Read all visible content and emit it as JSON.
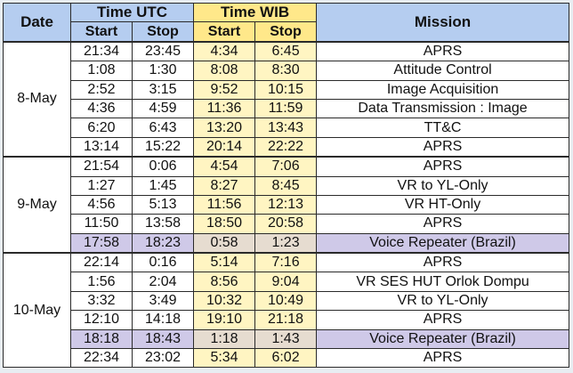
{
  "headers": {
    "date": "Date",
    "time_utc": "Time UTC",
    "time_wib": "Time WIB",
    "mission": "Mission",
    "start": "Start",
    "stop": "Stop"
  },
  "colors": {
    "header_blue": "#b5cdf0",
    "header_yellow": "#ffe88a",
    "wib_column": "#fff5c2",
    "highlight_row": "#cfc9e8"
  },
  "days": [
    {
      "date": "8-May",
      "rows": [
        {
          "utc_start": "21:34",
          "utc_stop": "23:45",
          "wib_start": "4:34",
          "wib_stop": "6:45",
          "mission": "APRS",
          "highlight": false
        },
        {
          "utc_start": "1:08",
          "utc_stop": "1:30",
          "wib_start": "8:08",
          "wib_stop": "8:30",
          "mission": "Attitude Control",
          "highlight": false
        },
        {
          "utc_start": "2:52",
          "utc_stop": "3:15",
          "wib_start": "9:52",
          "wib_stop": "10:15",
          "mission": "Image Acquisition",
          "highlight": false
        },
        {
          "utc_start": "4:36",
          "utc_stop": "4:59",
          "wib_start": "11:36",
          "wib_stop": "11:59",
          "mission": "Data Transmission : Image",
          "highlight": false
        },
        {
          "utc_start": "6:20",
          "utc_stop": "6:43",
          "wib_start": "13:20",
          "wib_stop": "13:43",
          "mission": "TT&C",
          "highlight": false
        },
        {
          "utc_start": "13:14",
          "utc_stop": "15:22",
          "wib_start": "20:14",
          "wib_stop": "22:22",
          "mission": "APRS",
          "highlight": false
        }
      ]
    },
    {
      "date": "9-May",
      "rows": [
        {
          "utc_start": "21:54",
          "utc_stop": "0:06",
          "wib_start": "4:54",
          "wib_stop": "7:06",
          "mission": "APRS",
          "highlight": false
        },
        {
          "utc_start": "1:27",
          "utc_stop": "1:45",
          "wib_start": "8:27",
          "wib_stop": "8:45",
          "mission": "VR to YL-Only",
          "highlight": false
        },
        {
          "utc_start": "4:56",
          "utc_stop": "5:13",
          "wib_start": "11:56",
          "wib_stop": "12:13",
          "mission": "VR HT-Only",
          "highlight": false
        },
        {
          "utc_start": "11:50",
          "utc_stop": "13:58",
          "wib_start": "18:50",
          "wib_stop": "20:58",
          "mission": "APRS",
          "highlight": false
        },
        {
          "utc_start": "17:58",
          "utc_stop": "18:23",
          "wib_start": "0:58",
          "wib_stop": "1:23",
          "mission": "Voice Repeater (Brazil)",
          "highlight": true
        }
      ]
    },
    {
      "date": "10-May",
      "rows": [
        {
          "utc_start": "22:14",
          "utc_stop": "0:16",
          "wib_start": "5:14",
          "wib_stop": "7:16",
          "mission": "APRS",
          "highlight": false
        },
        {
          "utc_start": "1:56",
          "utc_stop": "2:04",
          "wib_start": "8:56",
          "wib_stop": "9:04",
          "mission": "VR SES HUT Orlok Dompu",
          "highlight": false
        },
        {
          "utc_start": "3:32",
          "utc_stop": "3:49",
          "wib_start": "10:32",
          "wib_stop": "10:49",
          "mission": "VR to YL-Only",
          "highlight": false
        },
        {
          "utc_start": "12:10",
          "utc_stop": "14:18",
          "wib_start": "19:10",
          "wib_stop": "21:18",
          "mission": "APRS",
          "highlight": false
        },
        {
          "utc_start": "18:18",
          "utc_stop": "18:43",
          "wib_start": "1:18",
          "wib_stop": "1:43",
          "mission": "Voice Repeater (Brazil)",
          "highlight": true
        },
        {
          "utc_start": "22:34",
          "utc_stop": "23:02",
          "wib_start": "5:34",
          "wib_stop": "6:02",
          "mission": "APRS",
          "highlight": false
        }
      ]
    }
  ]
}
